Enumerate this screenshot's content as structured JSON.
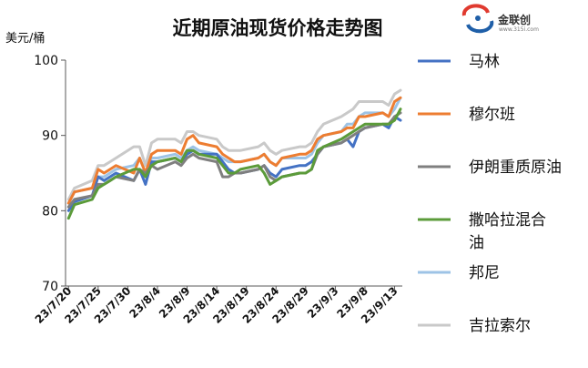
{
  "logo": {
    "name": "金联创",
    "url": "www.315i.com",
    "colors": [
      "#1f5fa8",
      "#e03a2f"
    ]
  },
  "chart_data": {
    "type": "line",
    "title": "近期原油现货价格走势图",
    "ylabel": "美元/桶",
    "xlabel": "",
    "ylim": [
      70,
      100
    ],
    "yticks": [
      70,
      80,
      90,
      100
    ],
    "grid": false,
    "legend_position": "right",
    "x_tick_labels": [
      "23/7/20",
      "23/7/25",
      "23/7/30",
      "23/8/4",
      "23/8/9",
      "23/8/14",
      "23/8/19",
      "23/8/24",
      "23/8/29",
      "23/9/3",
      "23/9/8",
      "23/9/13"
    ],
    "x": [
      "2023-07-20",
      "2023-07-21",
      "2023-07-24",
      "2023-07-25",
      "2023-07-26",
      "2023-07-27",
      "2023-07-28",
      "2023-07-31",
      "2023-08-01",
      "2023-08-02",
      "2023-08-03",
      "2023-08-04",
      "2023-08-07",
      "2023-08-08",
      "2023-08-09",
      "2023-08-10",
      "2023-08-11",
      "2023-08-14",
      "2023-08-15",
      "2023-08-16",
      "2023-08-17",
      "2023-08-18",
      "2023-08-21",
      "2023-08-22",
      "2023-08-23",
      "2023-08-24",
      "2023-08-25",
      "2023-08-28",
      "2023-08-29",
      "2023-08-30",
      "2023-08-31",
      "2023-09-01",
      "2023-09-04",
      "2023-09-05",
      "2023-09-06",
      "2023-09-07",
      "2023-09-08",
      "2023-09-11",
      "2023-09-12",
      "2023-09-13",
      "2023-09-14"
    ],
    "series": [
      {
        "name": "马林",
        "color": "#4472c4",
        "values": [
          80.0,
          81.2,
          82.0,
          84.5,
          84.0,
          84.5,
          85.0,
          84.0,
          85.5,
          83.5,
          86.5,
          86.5,
          87.0,
          86.5,
          87.5,
          88.0,
          87.5,
          87.5,
          86.5,
          85.5,
          85.0,
          85.0,
          85.5,
          86.0,
          85.0,
          84.5,
          85.5,
          86.0,
          86.0,
          86.5,
          87.5,
          88.5,
          89.0,
          89.5,
          88.5,
          90.5,
          91.0,
          91.5,
          91.0,
          92.5,
          92.0
        ]
      },
      {
        "name": "穆尔班",
        "color": "#ed7d31",
        "values": [
          81.0,
          82.5,
          83.0,
          85.5,
          85.0,
          85.5,
          86.0,
          85.0,
          87.0,
          85.0,
          87.5,
          88.0,
          88.0,
          87.5,
          89.5,
          90.0,
          89.0,
          88.5,
          87.5,
          87.0,
          86.5,
          86.5,
          87.0,
          87.5,
          86.5,
          86.0,
          87.0,
          87.5,
          87.5,
          88.0,
          89.5,
          90.0,
          90.5,
          91.0,
          91.0,
          92.5,
          92.5,
          93.0,
          92.5,
          94.5,
          95.0
        ]
      },
      {
        "name": "伊朗重质原油",
        "color": "#7f7f7f",
        "values": [
          80.5,
          81.5,
          82.0,
          83.5,
          83.5,
          84.0,
          84.5,
          84.0,
          85.5,
          85.0,
          86.0,
          85.5,
          86.5,
          86.0,
          87.0,
          87.5,
          87.0,
          86.5,
          84.5,
          84.5,
          85.0,
          85.0,
          85.5,
          86.0,
          84.5,
          84.0,
          84.5,
          85.0,
          85.0,
          85.5,
          87.5,
          88.5,
          89.0,
          89.5,
          90.0,
          90.5,
          91.0,
          91.5,
          91.5,
          92.5,
          93.0
        ]
      },
      {
        "name": "撒哈拉混合油",
        "color": "#5b9b3a",
        "values": [
          79.0,
          80.8,
          81.5,
          83.0,
          83.5,
          84.0,
          84.5,
          85.5,
          85.5,
          84.5,
          86.0,
          86.5,
          87.0,
          86.5,
          88.0,
          88.0,
          87.5,
          87.0,
          86.0,
          85.0,
          85.0,
          85.5,
          86.0,
          85.0,
          83.5,
          84.0,
          84.5,
          85.0,
          85.0,
          85.5,
          88.0,
          88.5,
          89.5,
          90.0,
          90.5,
          91.0,
          91.5,
          91.5,
          91.5,
          92.0,
          93.5
        ]
      },
      {
        "name": "邦尼",
        "color": "#9dc3e6",
        "values": [
          81.0,
          82.5,
          83.0,
          84.5,
          84.5,
          85.0,
          85.5,
          86.0,
          87.0,
          85.0,
          87.0,
          87.0,
          87.5,
          87.0,
          88.0,
          88.5,
          88.0,
          87.5,
          87.0,
          86.5,
          86.5,
          86.5,
          87.0,
          87.5,
          86.5,
          86.0,
          87.0,
          87.0,
          87.0,
          87.5,
          89.0,
          90.0,
          90.5,
          91.5,
          91.5,
          92.5,
          93.0,
          93.0,
          92.5,
          93.5,
          95.0
        ]
      },
      {
        "name": "吉拉索尔",
        "color": "#c9c9c9",
        "values": [
          81.5,
          83.0,
          84.0,
          86.0,
          86.0,
          86.5,
          87.0,
          88.5,
          88.5,
          86.0,
          89.0,
          89.5,
          89.5,
          89.0,
          90.5,
          90.5,
          90.0,
          89.5,
          88.5,
          88.0,
          88.0,
          88.0,
          88.5,
          89.0,
          88.0,
          87.5,
          88.0,
          88.5,
          88.5,
          89.0,
          90.5,
          91.5,
          92.5,
          93.0,
          93.5,
          94.5,
          94.5,
          94.5,
          94.0,
          95.5,
          96.0
        ]
      }
    ]
  }
}
